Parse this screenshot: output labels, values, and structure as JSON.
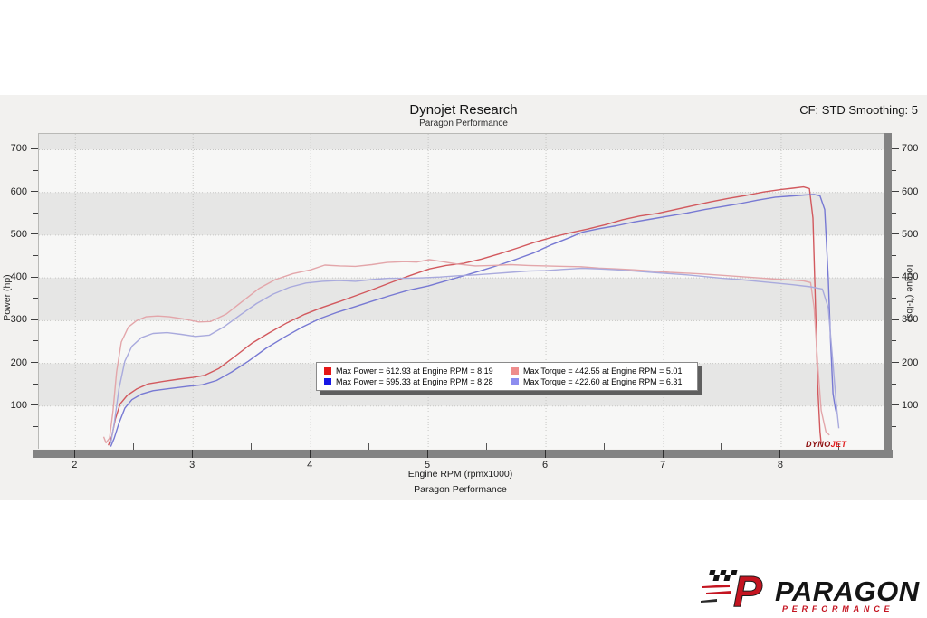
{
  "header": {
    "title": "Dynojet Research",
    "subtitle": "Paragon Performance",
    "corner_note": "CF: STD Smoothing: 5"
  },
  "axes": {
    "left_title": "Power (hp)",
    "right_title": "Torque (ft-lbs)",
    "x_title": "Engine RPM (rpmx1000)",
    "x_subtitle": "Paragon Performance"
  },
  "watermark": {
    "dyno": "DYNO",
    "jet": "JET"
  },
  "footer_logo": {
    "p_mark": "P",
    "brand": "PARAGON",
    "sub": "PERFORMANCE"
  },
  "chart_data": {
    "type": "line",
    "title": "Dynojet Research",
    "subtitle": "Paragon Performance",
    "xlabel": "Engine RPM (rpmx1000)",
    "ylabel_left": "Power (hp)",
    "ylabel_right": "Torque (ft-lbs)",
    "xlim": [
      1.69,
      8.87
    ],
    "ylim": [
      0,
      737
    ],
    "x_ticks": [
      2,
      3,
      4,
      5,
      6,
      7,
      8
    ],
    "x_minor_ticks": [
      2.5,
      3.5,
      4.5,
      5.5,
      6.5,
      7.5,
      8.5
    ],
    "y_ticks": [
      100,
      200,
      300,
      400,
      500,
      600,
      700
    ],
    "y_minor_ticks": [
      50,
      150,
      250,
      350,
      450,
      550,
      650
    ],
    "grid": "dotted",
    "gray_bands": [
      [
        100,
        200
      ],
      [
        300,
        400
      ],
      [
        500,
        600
      ],
      [
        700,
        737
      ]
    ],
    "legend_position": "center",
    "series": [
      {
        "name": "Max Power = 612.93 at Engine RPM = 8.19",
        "unit": "hp",
        "axis": "left",
        "legend_color": "#e51717",
        "line_color": "#d2595e",
        "max": {
          "value": 612.93,
          "rpm": 8.19
        },
        "points": [
          [
            2.28,
            8
          ],
          [
            2.31,
            30
          ],
          [
            2.34,
            70
          ],
          [
            2.38,
            105
          ],
          [
            2.44,
            125
          ],
          [
            2.52,
            140
          ],
          [
            2.62,
            152
          ],
          [
            2.75,
            158
          ],
          [
            2.88,
            163
          ],
          [
            3.0,
            167
          ],
          [
            3.1,
            172
          ],
          [
            3.22,
            188
          ],
          [
            3.35,
            215
          ],
          [
            3.5,
            247
          ],
          [
            3.65,
            272
          ],
          [
            3.8,
            295
          ],
          [
            3.95,
            315
          ],
          [
            4.1,
            331
          ],
          [
            4.25,
            345
          ],
          [
            4.4,
            360
          ],
          [
            4.55,
            375
          ],
          [
            4.7,
            391
          ],
          [
            4.85,
            406
          ],
          [
            5.01,
            421
          ],
          [
            5.15,
            429
          ],
          [
            5.3,
            434
          ],
          [
            5.45,
            444
          ],
          [
            5.6,
            456
          ],
          [
            5.75,
            469
          ],
          [
            5.9,
            483
          ],
          [
            6.05,
            495
          ],
          [
            6.2,
            505
          ],
          [
            6.35,
            514
          ],
          [
            6.5,
            524
          ],
          [
            6.65,
            536
          ],
          [
            6.8,
            545
          ],
          [
            6.95,
            551
          ],
          [
            7.1,
            560
          ],
          [
            7.25,
            569
          ],
          [
            7.4,
            578
          ],
          [
            7.55,
            586
          ],
          [
            7.7,
            593
          ],
          [
            7.85,
            601
          ],
          [
            8.0,
            607
          ],
          [
            8.1,
            610
          ],
          [
            8.19,
            612.93
          ],
          [
            8.24,
            609
          ],
          [
            8.27,
            540
          ],
          [
            8.29,
            350
          ],
          [
            8.31,
            150
          ],
          [
            8.33,
            40
          ],
          [
            8.34,
            12
          ]
        ]
      },
      {
        "name": "Max Power = 595.33 at Engine RPM = 8.28",
        "unit": "hp",
        "axis": "left",
        "legend_color": "#1717e5",
        "line_color": "#7779d3",
        "max": {
          "value": 595.33,
          "rpm": 8.28
        },
        "points": [
          [
            2.3,
            5
          ],
          [
            2.33,
            25
          ],
          [
            2.37,
            60
          ],
          [
            2.42,
            95
          ],
          [
            2.48,
            115
          ],
          [
            2.56,
            128
          ],
          [
            2.66,
            136
          ],
          [
            2.8,
            141
          ],
          [
            2.95,
            146
          ],
          [
            3.08,
            150
          ],
          [
            3.2,
            160
          ],
          [
            3.33,
            180
          ],
          [
            3.47,
            205
          ],
          [
            3.62,
            235
          ],
          [
            3.78,
            262
          ],
          [
            3.93,
            285
          ],
          [
            4.08,
            305
          ],
          [
            4.23,
            320
          ],
          [
            4.38,
            333
          ],
          [
            4.53,
            346
          ],
          [
            4.68,
            359
          ],
          [
            4.83,
            371
          ],
          [
            5.0,
            381
          ],
          [
            5.15,
            393
          ],
          [
            5.3,
            405
          ],
          [
            5.45,
            417
          ],
          [
            5.6,
            430
          ],
          [
            5.75,
            444
          ],
          [
            5.9,
            459
          ],
          [
            6.05,
            478
          ],
          [
            6.2,
            494
          ],
          [
            6.31,
            507
          ],
          [
            6.45,
            515
          ],
          [
            6.6,
            522
          ],
          [
            6.75,
            531
          ],
          [
            6.9,
            538
          ],
          [
            7.05,
            545
          ],
          [
            7.2,
            552
          ],
          [
            7.35,
            560
          ],
          [
            7.5,
            567
          ],
          [
            7.65,
            574
          ],
          [
            7.8,
            582
          ],
          [
            7.95,
            589
          ],
          [
            8.1,
            592
          ],
          [
            8.2,
            594
          ],
          [
            8.28,
            595.33
          ],
          [
            8.33,
            592
          ],
          [
            8.37,
            560
          ],
          [
            8.4,
            400
          ],
          [
            8.42,
            250
          ],
          [
            8.44,
            130
          ],
          [
            8.46,
            95
          ],
          [
            8.47,
            83
          ]
        ]
      },
      {
        "name": "Max Torque = 442.55 at Engine RPM = 5.01",
        "unit": "ft-lbs",
        "axis": "right",
        "legend_color": "#ef8d8d",
        "line_color": "#e3a6aa",
        "max": {
          "value": 442.55,
          "rpm": 5.01
        },
        "points": [
          [
            2.24,
            28
          ],
          [
            2.26,
            14
          ],
          [
            2.29,
            25
          ],
          [
            2.32,
            90
          ],
          [
            2.35,
            180
          ],
          [
            2.39,
            250
          ],
          [
            2.45,
            285
          ],
          [
            2.52,
            300
          ],
          [
            2.6,
            309
          ],
          [
            2.7,
            311
          ],
          [
            2.8,
            309
          ],
          [
            2.92,
            304
          ],
          [
            3.05,
            297
          ],
          [
            3.15,
            298
          ],
          [
            3.28,
            315
          ],
          [
            3.42,
            345
          ],
          [
            3.56,
            375
          ],
          [
            3.7,
            396
          ],
          [
            3.85,
            410
          ],
          [
            4.0,
            419
          ],
          [
            4.12,
            430
          ],
          [
            4.25,
            428
          ],
          [
            4.38,
            427
          ],
          [
            4.52,
            431
          ],
          [
            4.65,
            436
          ],
          [
            4.8,
            438
          ],
          [
            4.9,
            437
          ],
          [
            5.01,
            442.55
          ],
          [
            5.12,
            438
          ],
          [
            5.25,
            432
          ],
          [
            5.4,
            428
          ],
          [
            5.55,
            429
          ],
          [
            5.7,
            431
          ],
          [
            5.85,
            429
          ],
          [
            6.0,
            428
          ],
          [
            6.15,
            427
          ],
          [
            6.3,
            426
          ],
          [
            6.45,
            423
          ],
          [
            6.6,
            421
          ],
          [
            6.75,
            419
          ],
          [
            6.9,
            416
          ],
          [
            7.05,
            413
          ],
          [
            7.2,
            411
          ],
          [
            7.35,
            409
          ],
          [
            7.5,
            406
          ],
          [
            7.65,
            403
          ],
          [
            7.8,
            400
          ],
          [
            7.95,
            397
          ],
          [
            8.1,
            395
          ],
          [
            8.19,
            393
          ],
          [
            8.25,
            389
          ],
          [
            8.28,
            330
          ],
          [
            8.31,
            200
          ],
          [
            8.34,
            90
          ],
          [
            8.38,
            40
          ],
          [
            8.41,
            32
          ]
        ]
      },
      {
        "name": "Max Torque = 422.60 at Engine RPM = 6.31",
        "unit": "ft-lbs",
        "axis": "right",
        "legend_color": "#8d8def",
        "line_color": "#a9aadd",
        "max": {
          "value": 422.6,
          "rpm": 6.31
        },
        "points": [
          [
            2.3,
            12
          ],
          [
            2.33,
            60
          ],
          [
            2.37,
            140
          ],
          [
            2.42,
            205
          ],
          [
            2.48,
            240
          ],
          [
            2.56,
            260
          ],
          [
            2.66,
            270
          ],
          [
            2.78,
            272
          ],
          [
            2.9,
            268
          ],
          [
            3.02,
            263
          ],
          [
            3.14,
            266
          ],
          [
            3.26,
            285
          ],
          [
            3.4,
            313
          ],
          [
            3.54,
            340
          ],
          [
            3.68,
            362
          ],
          [
            3.82,
            378
          ],
          [
            3.96,
            388
          ],
          [
            4.1,
            392
          ],
          [
            4.24,
            394
          ],
          [
            4.38,
            392
          ],
          [
            4.52,
            396
          ],
          [
            4.66,
            399
          ],
          [
            4.8,
            399
          ],
          [
            4.95,
            400
          ],
          [
            5.1,
            402
          ],
          [
            5.25,
            405
          ],
          [
            5.4,
            407
          ],
          [
            5.55,
            410
          ],
          [
            5.7,
            413
          ],
          [
            5.85,
            416
          ],
          [
            6.0,
            417
          ],
          [
            6.15,
            420
          ],
          [
            6.31,
            422.6
          ],
          [
            6.45,
            421
          ],
          [
            6.6,
            419
          ],
          [
            6.75,
            416
          ],
          [
            6.9,
            413
          ],
          [
            7.05,
            410
          ],
          [
            7.2,
            407
          ],
          [
            7.35,
            403
          ],
          [
            7.5,
            399
          ],
          [
            7.65,
            396
          ],
          [
            7.8,
            392
          ],
          [
            7.95,
            388
          ],
          [
            8.1,
            384
          ],
          [
            8.25,
            379
          ],
          [
            8.35,
            374
          ],
          [
            8.4,
            330
          ],
          [
            8.44,
            200
          ],
          [
            8.47,
            100
          ],
          [
            8.49,
            48
          ]
        ]
      }
    ]
  }
}
